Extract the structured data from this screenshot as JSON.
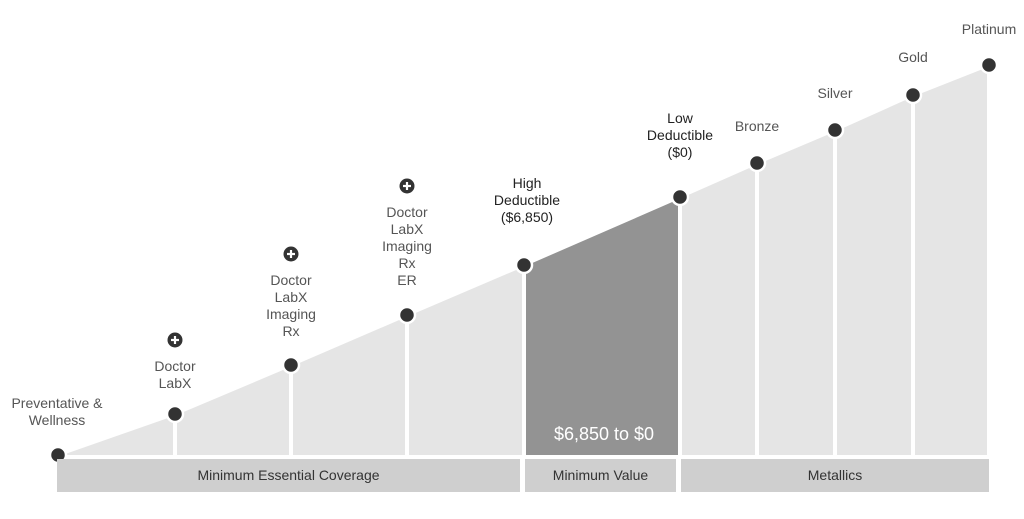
{
  "diagram": {
    "colors": {
      "light_area": "#e5e5e5",
      "highlight_area": "#939393",
      "band": "#cfcfcf",
      "node": "#333333",
      "divider": "#ffffff"
    },
    "levels": [
      {
        "id": "preventative",
        "label_lines": [
          "Preventative &",
          "Wellness"
        ],
        "plus": false,
        "emphasis": false
      },
      {
        "id": "doctor-labx",
        "label_lines": [
          "Doctor",
          "LabX"
        ],
        "plus": true,
        "emphasis": false
      },
      {
        "id": "doctor-labx-imaging-rx",
        "label_lines": [
          "Doctor",
          "LabX",
          "Imaging",
          "Rx"
        ],
        "plus": true,
        "emphasis": false
      },
      {
        "id": "doctor-labx-imaging-rx-er",
        "label_lines": [
          "Doctor",
          "LabX",
          "Imaging",
          "Rx",
          "ER"
        ],
        "plus": true,
        "emphasis": false
      },
      {
        "id": "high-deductible",
        "label_lines": [
          "High",
          "Deductible",
          "($6,850)"
        ],
        "plus": false,
        "emphasis": true
      },
      {
        "id": "low-deductible",
        "label_lines": [
          "Low",
          "Deductible",
          "($0)"
        ],
        "plus": false,
        "emphasis": true
      },
      {
        "id": "bronze",
        "label_lines": [
          "Bronze"
        ],
        "plus": false,
        "emphasis": false
      },
      {
        "id": "silver",
        "label_lines": [
          "Silver"
        ],
        "plus": false,
        "emphasis": false
      },
      {
        "id": "gold",
        "label_lines": [
          "Gold"
        ],
        "plus": false,
        "emphasis": false
      },
      {
        "id": "platinum",
        "label_lines": [
          "Platinum"
        ],
        "plus": false,
        "emphasis": false
      }
    ],
    "range_label": "$6,850 to $0",
    "bands": [
      {
        "id": "minimum-essential-coverage",
        "label": "Minimum Essential Coverage"
      },
      {
        "id": "minimum-value",
        "label": "Minimum Value"
      },
      {
        "id": "metallics",
        "label": "Metallics"
      }
    ]
  }
}
